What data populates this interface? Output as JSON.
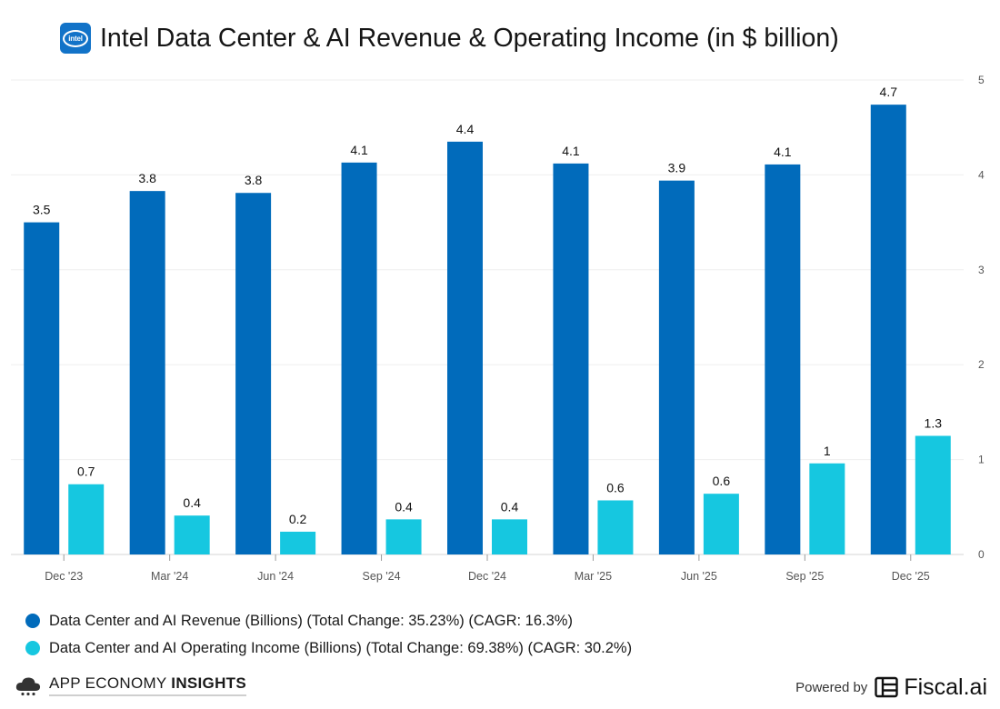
{
  "header": {
    "logo_text": "intel",
    "title": "Intel Data Center & AI Revenue & Operating Income (in $ billion)"
  },
  "chart_data": {
    "type": "bar",
    "title": "Intel Data Center & AI Revenue & Operating Income (in $ billion)",
    "categories": [
      "Dec '23",
      "Mar '24",
      "Jun '24",
      "Sep '24",
      "Dec '24",
      "Mar '25",
      "Jun '25",
      "Sep '25",
      "Dec '25"
    ],
    "series": [
      {
        "name": "Data Center and AI Revenue (Billions)",
        "color": "#016bbb",
        "values": [
          3.5,
          3.83,
          3.81,
          4.13,
          4.35,
          4.12,
          3.94,
          4.11,
          4.74
        ],
        "labels": [
          "3.5",
          "3.8",
          "3.8",
          "4.1",
          "4.4",
          "4.1",
          "3.9",
          "4.1",
          "4.7"
        ]
      },
      {
        "name": "Data Center and AI Operating Income (Billions)",
        "color": "#16c7e0",
        "values": [
          0.74,
          0.41,
          0.24,
          0.37,
          0.37,
          0.57,
          0.64,
          0.96,
          1.25
        ],
        "labels": [
          "0.7",
          "0.4",
          "0.2",
          "0.4",
          "0.4",
          "0.6",
          "0.6",
          "1",
          "1.3"
        ]
      }
    ],
    "ylim": [
      0,
      5
    ],
    "yticks": [
      0,
      1,
      2,
      3,
      4,
      5
    ],
    "grid": true,
    "axis_side": "right",
    "xlabel": "",
    "ylabel": ""
  },
  "legend": {
    "items": [
      {
        "label": "Data Center and AI Revenue (Billions) (Total Change: 35.23%) (CAGR: 16.3%)",
        "color": "#016bbb"
      },
      {
        "label": "Data Center and AI Operating Income (Billions) (Total Change: 69.38%) (CAGR: 30.2%)",
        "color": "#16c7e0"
      }
    ]
  },
  "footer": {
    "brand_regular": "APP ECONOMY ",
    "brand_bold": "INSIGHTS",
    "powered_by": "Powered by",
    "fiscal": "Fiscal.ai"
  }
}
